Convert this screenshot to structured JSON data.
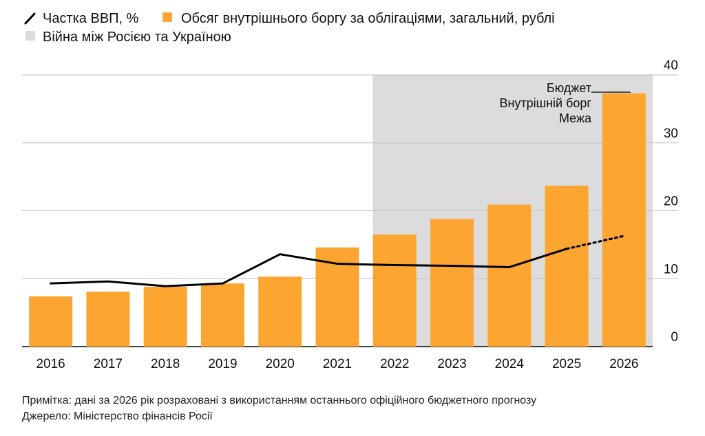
{
  "legend": {
    "line_label": "Частка ВВП, %",
    "bar_label": "Обсяг внутрішнього боргу за облігаціями, загальний, рублі",
    "shade_label": "Війна між Росією та Україною"
  },
  "annotation_lines": [
    "Бюджет",
    "Внутрішній борг",
    "Межа"
  ],
  "colors": {
    "bar": "#fca531",
    "line": "#000000",
    "shade": "#dcdcdc",
    "grid": "#bdbdbd"
  },
  "chart_data": {
    "type": "bar",
    "categories": [
      "2016",
      "2017",
      "2018",
      "2019",
      "2020",
      "2021",
      "2022",
      "2023",
      "2024",
      "2025",
      "2026"
    ],
    "ylim": [
      0,
      40
    ],
    "y_ticks": [
      0,
      10,
      20,
      30,
      40
    ],
    "y_tick_labels": [
      "0",
      "10",
      "20",
      "30",
      "40"
    ],
    "grid": true,
    "y_axis_position": "right",
    "series": [
      {
        "name": "Обсяг внутрішнього боргу за облігаціями, загальний, рублі",
        "type": "bar",
        "values": [
          7.4,
          8.1,
          8.8,
          9.3,
          10.3,
          14.6,
          16.5,
          18.8,
          20.9,
          23.7,
          37.3
        ]
      },
      {
        "name": "Частка ВВП, %",
        "type": "line",
        "values": [
          9.3,
          9.6,
          8.9,
          9.3,
          13.6,
          12.2,
          12.0,
          11.9,
          11.7,
          14.4,
          16.3
        ],
        "dashed_from": "2025"
      }
    ],
    "shaded_range": {
      "label": "Війна між Росією та Україною",
      "from": "2022",
      "to": "2026"
    }
  },
  "footer": {
    "note": "Примітка: дані за 2026 рік розраховані з використанням останнього офіційного бюджетного прогнозу",
    "source": "Джерело: Міністерство фінансів Росії"
  }
}
